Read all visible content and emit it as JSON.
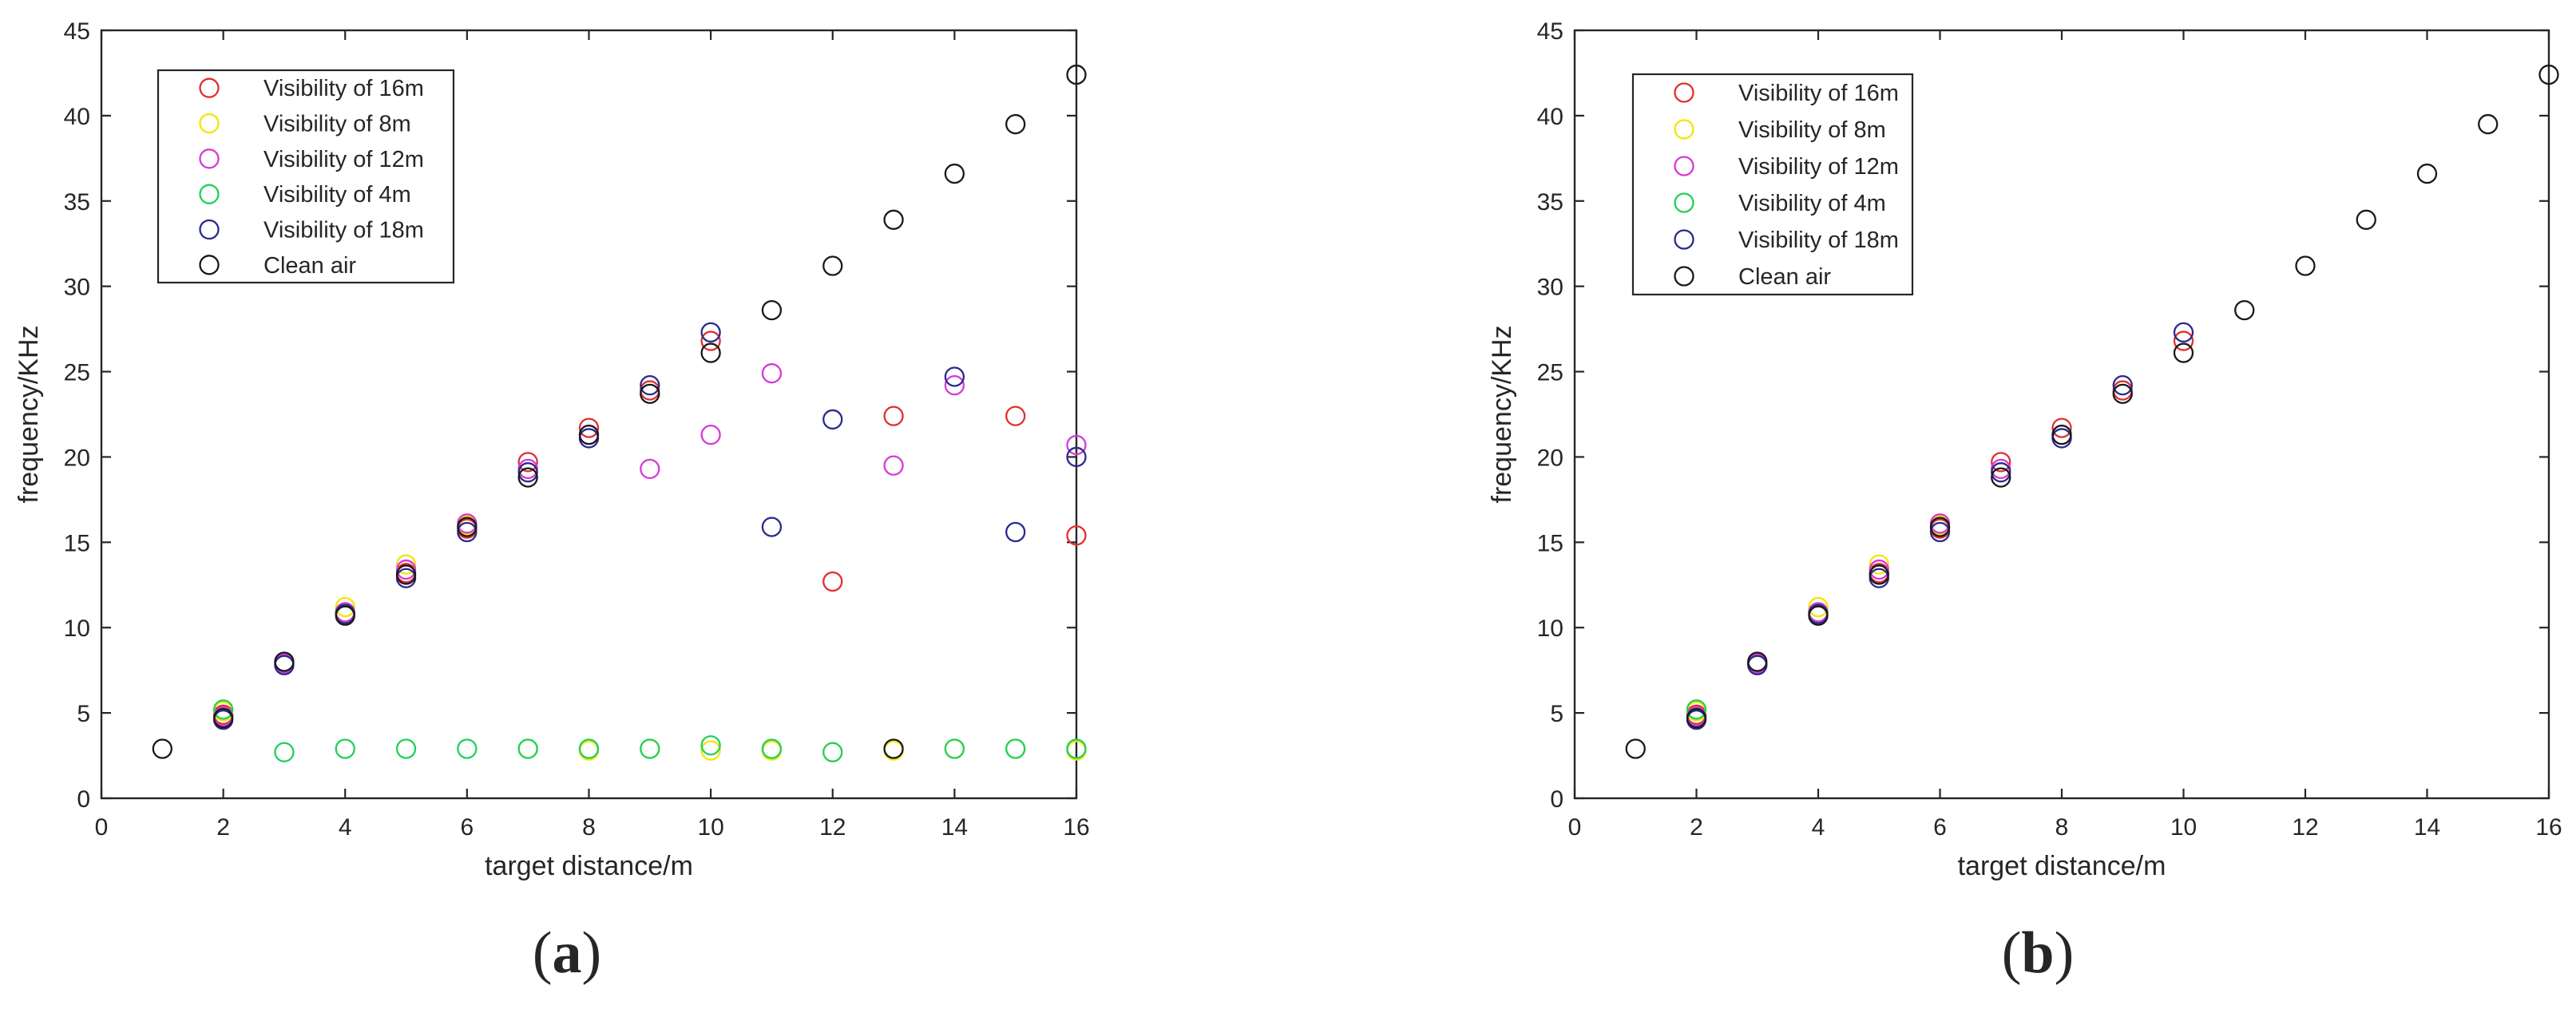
{
  "chart_data": [
    {
      "type": "scatter",
      "panel_label": "(a)",
      "panel_letter": "a",
      "xlabel": "target distance/m",
      "ylabel": "frequency/KHz",
      "xlim": [
        0,
        16
      ],
      "ylim": [
        0,
        45
      ],
      "xticks": [
        0,
        2,
        4,
        6,
        8,
        10,
        12,
        14,
        16
      ],
      "yticks": [
        0,
        5,
        10,
        15,
        20,
        25,
        30,
        35,
        40,
        45
      ],
      "grid": false,
      "legend_position": "top-left",
      "series": [
        {
          "name": "Visibility of 16m",
          "color": "#e03030",
          "points": [
            [
              2,
              4.9
            ],
            [
              3,
              7.9
            ],
            [
              4,
              10.9
            ],
            [
              5,
              13.2
            ],
            [
              6,
              15.8
            ],
            [
              7,
              19.7
            ],
            [
              8,
              21.7
            ],
            [
              9,
              23.9
            ],
            [
              10,
              26.8
            ],
            [
              12,
              12.7
            ],
            [
              13,
              22.4
            ],
            [
              15,
              22.4
            ],
            [
              16,
              15.4
            ]
          ]
        },
        {
          "name": "Visibility of 8m",
          "color": "#f2e600",
          "points": [
            [
              2,
              5.1
            ],
            [
              3,
              7.9
            ],
            [
              4,
              11.2
            ],
            [
              5,
              13.7
            ],
            [
              6,
              16.0
            ],
            [
              7,
              2.9
            ],
            [
              8,
              2.8
            ],
            [
              9,
              2.9
            ],
            [
              10,
              2.8
            ],
            [
              11,
              2.8
            ],
            [
              12,
              2.7
            ],
            [
              13,
              2.8
            ],
            [
              14,
              2.9
            ],
            [
              15,
              2.9
            ],
            [
              16,
              2.8
            ]
          ]
        },
        {
          "name": "Visibility of 12m",
          "color": "#d63ad6",
          "points": [
            [
              2,
              4.8
            ],
            [
              3,
              7.9
            ],
            [
              4,
              10.9
            ],
            [
              5,
              13.4
            ],
            [
              6,
              16.1
            ],
            [
              7,
              19.3
            ],
            [
              8,
              21.3
            ],
            [
              9,
              19.3
            ],
            [
              10,
              21.3
            ],
            [
              11,
              24.9
            ],
            [
              13,
              19.5
            ],
            [
              14,
              24.2
            ],
            [
              16,
              20.7
            ]
          ]
        },
        {
          "name": "Visibility of 4m",
          "color": "#22d05a",
          "points": [
            [
              2,
              5.2
            ],
            [
              3,
              2.7
            ],
            [
              4,
              2.9
            ],
            [
              5,
              2.9
            ],
            [
              6,
              2.9
            ],
            [
              7,
              2.9
            ],
            [
              8,
              2.9
            ],
            [
              9,
              2.9
            ],
            [
              10,
              3.1
            ],
            [
              11,
              2.9
            ],
            [
              12,
              2.7
            ],
            [
              14,
              2.9
            ],
            [
              15,
              2.9
            ],
            [
              16,
              2.9
            ]
          ]
        },
        {
          "name": "Visibility of 18m",
          "color": "#2a2a8c",
          "points": [
            [
              2,
              4.6
            ],
            [
              3,
              7.8
            ],
            [
              4,
              10.8
            ],
            [
              5,
              12.9
            ],
            [
              6,
              15.6
            ],
            [
              7,
              19.1
            ],
            [
              8,
              21.1
            ],
            [
              9,
              24.2
            ],
            [
              10,
              27.3
            ],
            [
              11,
              15.9
            ],
            [
              12,
              22.2
            ],
            [
              14,
              24.7
            ],
            [
              15,
              15.6
            ],
            [
              16,
              20.0
            ]
          ]
        },
        {
          "name": "Clean air",
          "color": "#1a1a1a",
          "points": [
            [
              1,
              2.9
            ],
            [
              2,
              4.7
            ],
            [
              3,
              8.0
            ],
            [
              4,
              10.7
            ],
            [
              5,
              13.1
            ],
            [
              6,
              15.9
            ],
            [
              7,
              18.8
            ],
            [
              8,
              21.3
            ],
            [
              9,
              23.7
            ],
            [
              10,
              26.1
            ],
            [
              11,
              28.6
            ],
            [
              12,
              31.2
            ],
            [
              13,
              33.9
            ],
            [
              14,
              36.6
            ],
            [
              15,
              39.5
            ],
            [
              16,
              42.4
            ],
            [
              13,
              2.9
            ]
          ]
        }
      ]
    },
    {
      "type": "scatter",
      "panel_label": "(b)",
      "panel_letter": "b",
      "xlabel": "target distance/m",
      "ylabel": "frequency/KHz",
      "xlim": [
        0,
        16
      ],
      "ylim": [
        0,
        45
      ],
      "xticks": [
        0,
        2,
        4,
        6,
        8,
        10,
        12,
        14,
        16
      ],
      "yticks": [
        0,
        5,
        10,
        15,
        20,
        25,
        30,
        35,
        40,
        45
      ],
      "grid": false,
      "legend_position": "top-left",
      "series": [
        {
          "name": "Visibility of 16m",
          "color": "#e03030",
          "points": [
            [
              2,
              4.9
            ],
            [
              3,
              7.9
            ],
            [
              4,
              10.9
            ],
            [
              5,
              13.2
            ],
            [
              6,
              15.8
            ],
            [
              7,
              19.7
            ],
            [
              8,
              21.7
            ],
            [
              9,
              23.9
            ],
            [
              10,
              26.8
            ]
          ]
        },
        {
          "name": "Visibility of 8m",
          "color": "#f2e600",
          "points": [
            [
              2,
              5.1
            ],
            [
              3,
              7.9
            ],
            [
              4,
              11.2
            ],
            [
              5,
              13.7
            ],
            [
              6,
              16.0
            ]
          ]
        },
        {
          "name": "Visibility of 12m",
          "color": "#d63ad6",
          "points": [
            [
              2,
              4.8
            ],
            [
              3,
              7.9
            ],
            [
              4,
              10.9
            ],
            [
              5,
              13.4
            ],
            [
              6,
              16.1
            ],
            [
              7,
              19.3
            ],
            [
              8,
              21.3
            ]
          ]
        },
        {
          "name": "Visibility of 4m",
          "color": "#22d05a",
          "points": [
            [
              2,
              5.2
            ]
          ]
        },
        {
          "name": "Visibility of 18m",
          "color": "#2a2a8c",
          "points": [
            [
              2,
              4.6
            ],
            [
              3,
              7.8
            ],
            [
              4,
              10.8
            ],
            [
              5,
              12.9
            ],
            [
              6,
              15.6
            ],
            [
              7,
              19.1
            ],
            [
              8,
              21.1
            ],
            [
              9,
              24.2
            ],
            [
              10,
              27.3
            ]
          ]
        },
        {
          "name": "Clean air",
          "color": "#1a1a1a",
          "points": [
            [
              1,
              2.9
            ],
            [
              2,
              4.7
            ],
            [
              3,
              8.0
            ],
            [
              4,
              10.7
            ],
            [
              5,
              13.1
            ],
            [
              6,
              15.9
            ],
            [
              7,
              18.8
            ],
            [
              8,
              21.3
            ],
            [
              9,
              23.7
            ],
            [
              10,
              26.1
            ],
            [
              11,
              28.6
            ],
            [
              12,
              31.2
            ],
            [
              13,
              33.9
            ],
            [
              14,
              36.6
            ],
            [
              15,
              39.5
            ],
            [
              16,
              42.4
            ]
          ]
        }
      ]
    }
  ]
}
